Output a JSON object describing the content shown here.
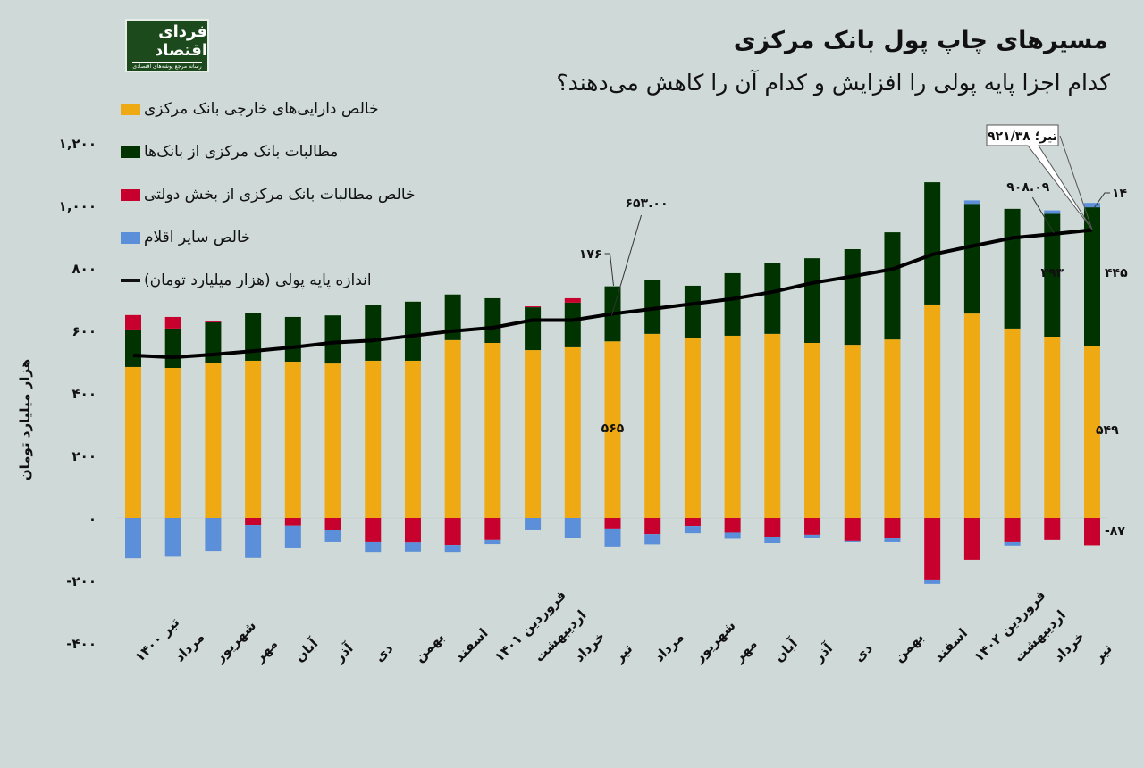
{
  "header": {
    "title": "مسیرهای چاپ پول بانک مرکزی",
    "subtitle": "کدام اجزا پایه پولی را افزایش و کدام آن را کاهش می‌دهند؟",
    "logo_text": "فردای اقتصاد",
    "logo_subtext": "رسانه مرجع پوشه‌های اقتصادی"
  },
  "chart_data": {
    "type": "bar",
    "stacked": true,
    "title": "مسیرهای چاپ پول بانک مرکزی",
    "ylabel": "هزار میلیارد تومان",
    "ylim": [
      -400,
      1200
    ],
    "yticks": [
      -400,
      -200,
      0,
      200,
      400,
      600,
      800,
      1000,
      1200
    ],
    "ytick_labels": [
      "-۴۰۰",
      "-۲۰۰",
      "۰",
      "۲۰۰",
      "۴۰۰",
      "۶۰۰",
      "۸۰۰",
      "۱,۰۰۰",
      "۱,۲۰۰"
    ],
    "categories": [
      "تیر ۱۴۰۰",
      "مرداد",
      "شهریور",
      "مهر",
      "آبان",
      "آذر",
      "دی",
      "بهمن",
      "اسفند",
      "فروردین ۱۴۰۱",
      "اردیبهشت",
      "خرداد",
      "تیر",
      "مرداد",
      "شهریور",
      "مهر",
      "آبان",
      "آذر",
      "دی",
      "بهمن",
      "اسفند",
      "فروردین ۱۴۰۲",
      "اردیبهشت",
      "خرداد",
      "تیر"
    ],
    "series": [
      {
        "name": "خالص دارایی‌های خارجی بانک مرکزی",
        "color": "#eea913",
        "values": [
          483,
          480,
          497,
          503,
          500,
          494,
          503,
          503,
          569,
          560,
          537,
          546,
          565,
          589,
          577,
          583,
          589,
          560,
          554,
          571,
          683,
          654,
          606,
          580,
          549
        ]
      },
      {
        "name": "مطالبات بانک مرکزی از بانک‌ها",
        "color": "#003300",
        "values": [
          120,
          126,
          129,
          154,
          143,
          154,
          177,
          189,
          146,
          143,
          137,
          143,
          176,
          171,
          166,
          200,
          226,
          271,
          306,
          343,
          391,
          351,
          383,
          393,
          445
        ]
      },
      {
        "name": "خالص مطالبات بانک مرکزی از بخش دولتی",
        "color": "#c8002d",
        "values": [
          46,
          37,
          3,
          -23,
          -25,
          -39,
          -77,
          -78,
          -86,
          -71,
          3,
          14,
          -34,
          -52,
          -26,
          -47,
          -60,
          -54,
          -74,
          -66,
          -197,
          -134,
          -77,
          -71,
          -87
        ]
      },
      {
        "name": "خالص سایر اقلام",
        "color": "#5b8fd9",
        "values": [
          -129,
          -124,
          -106,
          -105,
          -72,
          -38,
          -32,
          -30,
          -23,
          -12,
          -37,
          -63,
          -57,
          -32,
          -23,
          -20,
          -20,
          -11,
          -3,
          -11,
          -14,
          11,
          -11,
          11,
          14
        ]
      }
    ],
    "line": {
      "name": "اندازه پایه پولی (هزار میلیارد تومان)",
      "color": "#000000",
      "values": [
        520,
        514,
        523,
        534,
        546,
        561,
        568,
        583,
        598,
        609,
        633,
        633,
        653,
        669,
        685,
        701,
        723,
        752,
        773,
        796,
        843,
        870,
        896,
        908.09,
        921.38
      ]
    },
    "annotations": [
      {
        "label": "۱۷۶",
        "category_index": 12,
        "series": "مطالبات بانک مرکزی از بانک‌ها"
      },
      {
        "label": "۶۵۳.۰۰",
        "category_index": 12,
        "series": "line"
      },
      {
        "label": "۵۶۵",
        "category_index": 12,
        "series": "خالص دارایی‌های خارجی بانک مرکزی"
      },
      {
        "label": "۹۰۸.۰۹",
        "category_index": 23,
        "series": "line"
      },
      {
        "label": "۳۹۳",
        "category_index": 23,
        "series": "مطالبات بانک مرکزی از بانک‌ها"
      },
      {
        "label": "تیر؛ ۹۲۱/۳۸",
        "category_index": 24,
        "series": "line",
        "callout": true
      },
      {
        "label": "۱۴",
        "category_index": 24,
        "series": "خالص سایر اقلام"
      },
      {
        "label": "۴۴۵",
        "category_index": 24,
        "series": "مطالبات بانک مرکزی از بانک‌ها"
      },
      {
        "label": "۵۴۹",
        "category_index": 24,
        "series": "خالص دارایی‌های خارجی بانک مرکزی"
      },
      {
        "label": "-۸۷",
        "category_index": 24,
        "series": "خالص مطالبات بانک مرکزی از بخش دولتی"
      }
    ],
    "legend_position": "top-left",
    "grid": false
  },
  "legend": [
    {
      "label": "خالص دارایی‌های خارجی بانک مرکزی",
      "color": "#eea913",
      "kind": "bar"
    },
    {
      "label": "مطالبات بانک مرکزی از بانک‌ها",
      "color": "#003300",
      "kind": "bar"
    },
    {
      "label": "خالص مطالبات بانک مرکزی از بخش دولتی",
      "color": "#c8002d",
      "kind": "bar"
    },
    {
      "label": "خالص سایر اقلام",
      "color": "#5b8fd9",
      "kind": "bar"
    },
    {
      "label": "اندازه پایه پولی (هزار میلیارد تومان)",
      "color": "#000000",
      "kind": "line"
    }
  ]
}
